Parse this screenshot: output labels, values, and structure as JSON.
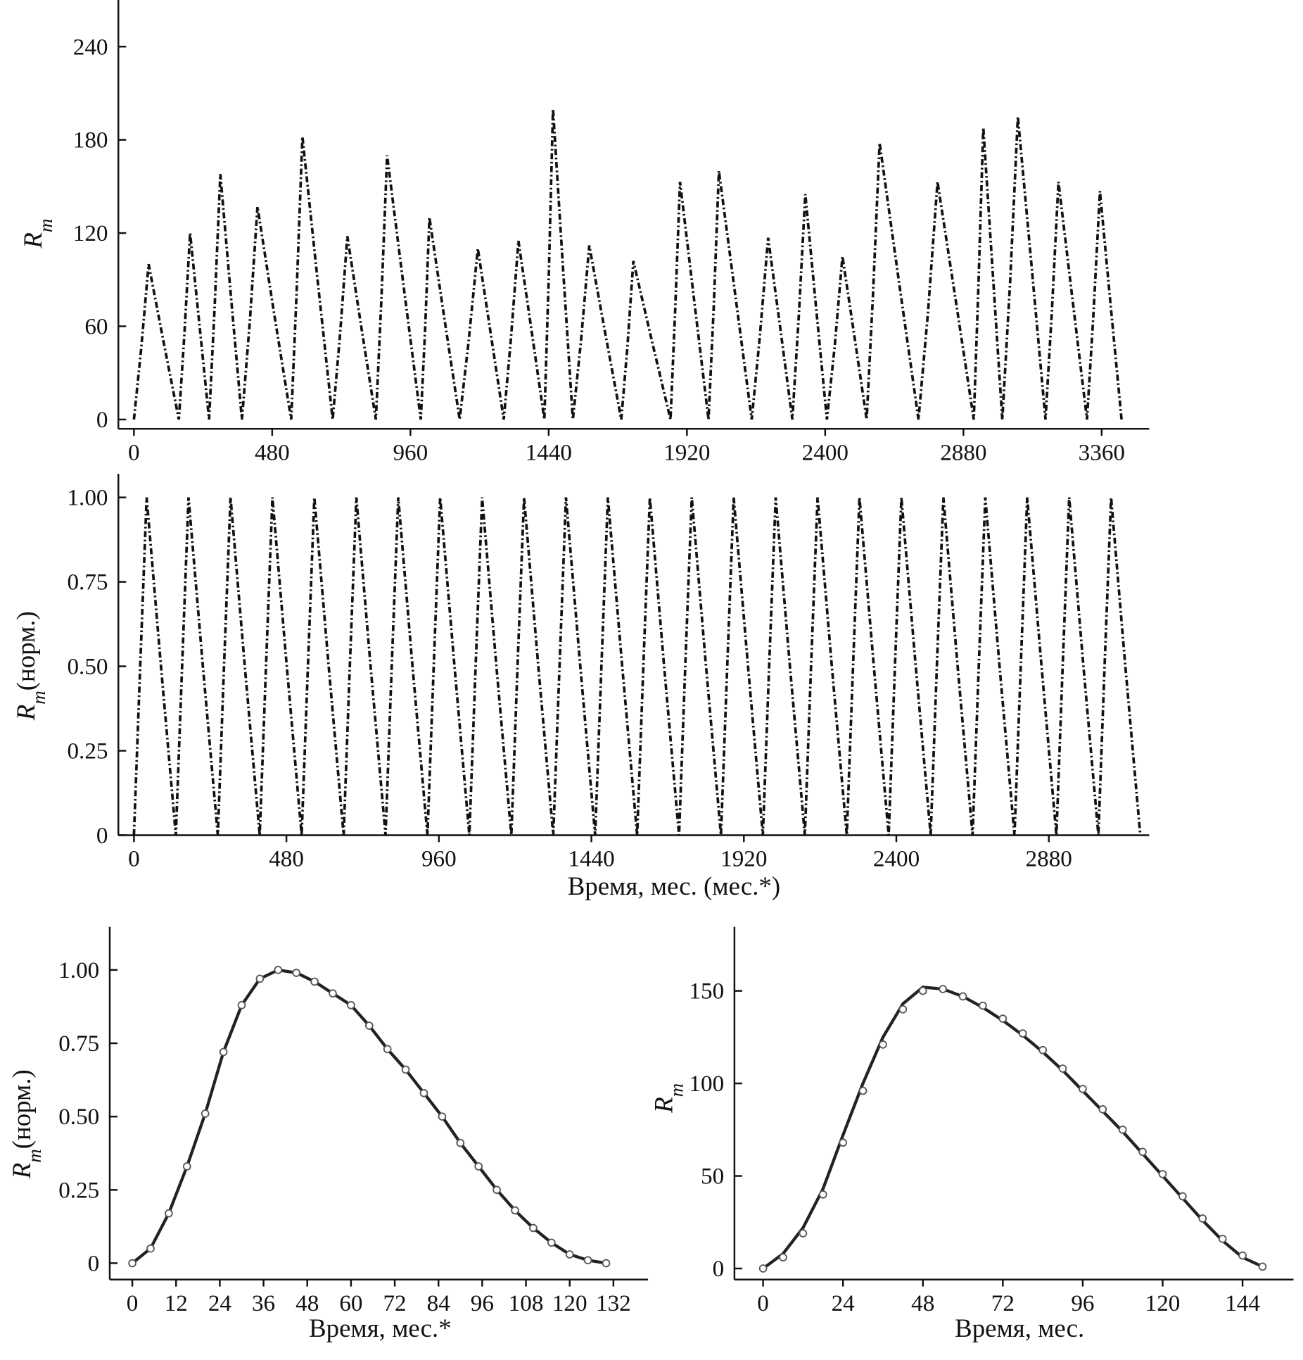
{
  "chart_data": [
    {
      "type": "line",
      "ylabel": {
        "symbol": "R",
        "subscript": "m"
      },
      "xlim": [
        -54,
        3525
      ],
      "ylim": [
        -6,
        270
      ],
      "xticks": [
        0,
        480,
        960,
        1440,
        1920,
        2400,
        2880,
        3360
      ],
      "yticks": [
        0,
        60,
        120,
        180,
        240
      ],
      "x": [
        0,
        25,
        51,
        103,
        156,
        175,
        195,
        228,
        261,
        280,
        300,
        337,
        375,
        402,
        429,
        487,
        546,
        565,
        585,
        637,
        690,
        715,
        741,
        790,
        840,
        859,
        879,
        937,
        996,
        1011,
        1026,
        1078,
        1131,
        1162,
        1194,
        1239,
        1284,
        1309,
        1335,
        1380,
        1425,
        1440,
        1455,
        1489,
        1524,
        1552,
        1581,
        1636,
        1692,
        1713,
        1734,
        1798,
        1863,
        1879,
        1896,
        1945,
        1995,
        2013,
        2031,
        2088,
        2145,
        2173,
        2202,
        2244,
        2286,
        2308,
        2331,
        2368,
        2406,
        2433,
        2460,
        2502,
        2544,
        2566,
        2589,
        2656,
        2724,
        2757,
        2790,
        2853,
        2916,
        2932,
        2949,
        2982,
        3015,
        3042,
        3069,
        3117,
        3165,
        3187,
        3210,
        3259,
        3309,
        3331,
        3354,
        3391,
        3429
      ],
      "series": [
        {
          "color": "#111111",
          "style": "dashdot",
          "values": [
            0,
            45,
            100,
            50,
            0,
            54,
            120,
            60,
            0,
            71,
            158,
            79,
            0,
            62,
            137,
            68,
            0,
            82,
            182,
            91,
            0,
            53,
            118,
            59,
            0,
            76,
            170,
            85,
            0,
            58,
            130,
            65,
            0,
            50,
            110,
            55,
            0,
            52,
            115,
            58,
            0,
            90,
            200,
            100,
            0,
            50,
            112,
            56,
            0,
            46,
            102,
            51,
            0,
            69,
            153,
            77,
            0,
            72,
            160,
            80,
            0,
            53,
            117,
            59,
            0,
            65,
            145,
            73,
            0,
            47,
            105,
            53,
            0,
            80,
            178,
            89,
            0,
            69,
            153,
            77,
            0,
            85,
            188,
            94,
            0,
            88,
            195,
            98,
            0,
            69,
            153,
            77,
            0,
            66,
            147,
            74,
            0
          ]
        }
      ]
    },
    {
      "type": "line",
      "ylabel": {
        "symbol": "R",
        "subscript": "m",
        "suffix": "(норм.)"
      },
      "xlabel": "Время, мес. (мес.*)",
      "xlim": [
        -49,
        3196
      ],
      "ylim": [
        0,
        1.07
      ],
      "xticks": [
        0,
        480,
        960,
        1440,
        1920,
        2400,
        2880
      ],
      "yticks": [
        0,
        0.25,
        {
          "value": 0.5,
          "label": "0.50"
        },
        0.75,
        {
          "value": 1,
          "label": "1.00"
        }
      ],
      "x": [
        0,
        20,
        40,
        85,
        132,
        152,
        172,
        217,
        264,
        284,
        304,
        349,
        396,
        416,
        436,
        481,
        528,
        548,
        568,
        613,
        660,
        680,
        700,
        745,
        792,
        812,
        832,
        877,
        924,
        944,
        964,
        1009,
        1056,
        1076,
        1096,
        1141,
        1188,
        1208,
        1228,
        1273,
        1320,
        1340,
        1360,
        1405,
        1452,
        1472,
        1492,
        1537,
        1584,
        1604,
        1624,
        1669,
        1716,
        1736,
        1756,
        1801,
        1848,
        1868,
        1888,
        1933,
        1980,
        2000,
        2020,
        2065,
        2112,
        2132,
        2152,
        2197,
        2244,
        2264,
        2284,
        2329,
        2376,
        2396,
        2416,
        2461,
        2508,
        2528,
        2548,
        2593,
        2640,
        2660,
        2680,
        2725,
        2772,
        2792,
        2812,
        2857,
        2904,
        2924,
        2944,
        2989,
        3036,
        3056,
        3076,
        3121,
        3168
      ],
      "series": [
        {
          "color": "#111111",
          "style": "dashdot",
          "values": [
            0,
            0.51,
            1,
            0.5,
            0,
            0.51,
            1,
            0.5,
            0,
            0.51,
            1,
            0.5,
            0,
            0.51,
            1,
            0.5,
            0,
            0.51,
            1,
            0.5,
            0,
            0.51,
            1,
            0.5,
            0,
            0.51,
            1,
            0.5,
            0,
            0.51,
            1,
            0.5,
            0,
            0.51,
            1,
            0.5,
            0,
            0.51,
            1,
            0.5,
            0,
            0.51,
            1,
            0.5,
            0,
            0.51,
            1,
            0.5,
            0,
            0.51,
            1,
            0.5,
            0,
            0.51,
            1,
            0.5,
            0,
            0.51,
            1,
            0.5,
            0,
            0.51,
            1,
            0.5,
            0,
            0.51,
            1,
            0.5,
            0,
            0.51,
            1,
            0.5,
            0,
            0.51,
            1,
            0.5,
            0,
            0.51,
            1,
            0.5,
            0,
            0.51,
            1,
            0.5,
            0,
            0.51,
            1,
            0.5,
            0,
            0.51,
            1,
            0.5,
            0,
            0.51,
            1,
            0.5,
            0
          ]
        }
      ]
    },
    {
      "type": "line",
      "ylabel": {
        "symbol": "R",
        "subscript": "m",
        "suffix": "(норм.)"
      },
      "xlabel": "Время, мес.*",
      "xlim": [
        -6.2,
        141.5
      ],
      "ylim": [
        -0.056,
        1.147
      ],
      "xticks": [
        0,
        12,
        24,
        36,
        48,
        60,
        72,
        84,
        96,
        108,
        120,
        132
      ],
      "yticks": [
        0,
        0.25,
        {
          "value": 0.5,
          "label": "0.50"
        },
        0.75,
        {
          "value": 1,
          "label": "1.00"
        }
      ],
      "x": [
        0,
        5,
        10,
        15,
        20,
        25,
        30,
        35,
        40,
        45,
        50,
        55,
        60,
        65,
        70,
        75,
        80,
        85,
        90,
        95,
        100,
        105,
        110,
        115,
        120,
        125,
        130
      ],
      "series": [
        {
          "color": "#222222",
          "style": "line",
          "values": [
            0,
            0.05,
            0.17,
            0.33,
            0.51,
            0.72,
            0.88,
            0.97,
            1,
            0.99,
            0.96,
            0.92,
            0.88,
            0.81,
            0.73,
            0.66,
            0.58,
            0.5,
            0.41,
            0.33,
            0.25,
            0.18,
            0.12,
            0.07,
            0.03,
            0.01,
            0
          ]
        },
        {
          "color": "#555555",
          "style": "markers",
          "values": [
            0,
            0.05,
            0.17,
            0.33,
            0.51,
            0.72,
            0.88,
            0.97,
            1,
            0.99,
            0.96,
            0.92,
            0.88,
            0.81,
            0.73,
            0.66,
            0.58,
            0.5,
            0.41,
            0.33,
            0.25,
            0.18,
            0.12,
            0.07,
            0.03,
            0.01,
            0
          ]
        }
      ]
    },
    {
      "type": "line",
      "ylabel": {
        "symbol": "R",
        "subscript": "m"
      },
      "xlabel": "Время, мес.",
      "xlim": [
        -8.6,
        159.3
      ],
      "ylim": [
        -6,
        184.6
      ],
      "xticks": [
        0,
        24,
        48,
        72,
        96,
        120,
        144
      ],
      "yticks": [
        0,
        50,
        100,
        150
      ],
      "x": [
        0,
        6,
        12,
        18,
        24,
        30,
        36,
        42,
        48,
        54,
        60,
        66,
        72,
        78,
        84,
        90,
        96,
        102,
        108,
        114,
        120,
        126,
        132,
        138,
        144,
        150
      ],
      "series": [
        {
          "color": "#222222",
          "style": "line",
          "values": [
            0,
            8,
            22,
            43,
            72,
            100,
            125,
            143,
            152,
            151,
            147,
            141,
            134,
            126,
            117,
            107,
            96,
            85,
            74,
            62,
            50,
            38,
            26,
            15,
            6,
            1
          ]
        },
        {
          "color": "#555555",
          "style": "markers",
          "values": [
            0,
            6,
            19,
            40,
            68,
            96,
            121,
            140,
            150,
            151,
            147,
            142,
            135,
            127,
            118,
            108,
            97,
            86,
            75,
            63,
            51,
            39,
            27,
            16,
            7,
            1
          ]
        }
      ]
    }
  ]
}
